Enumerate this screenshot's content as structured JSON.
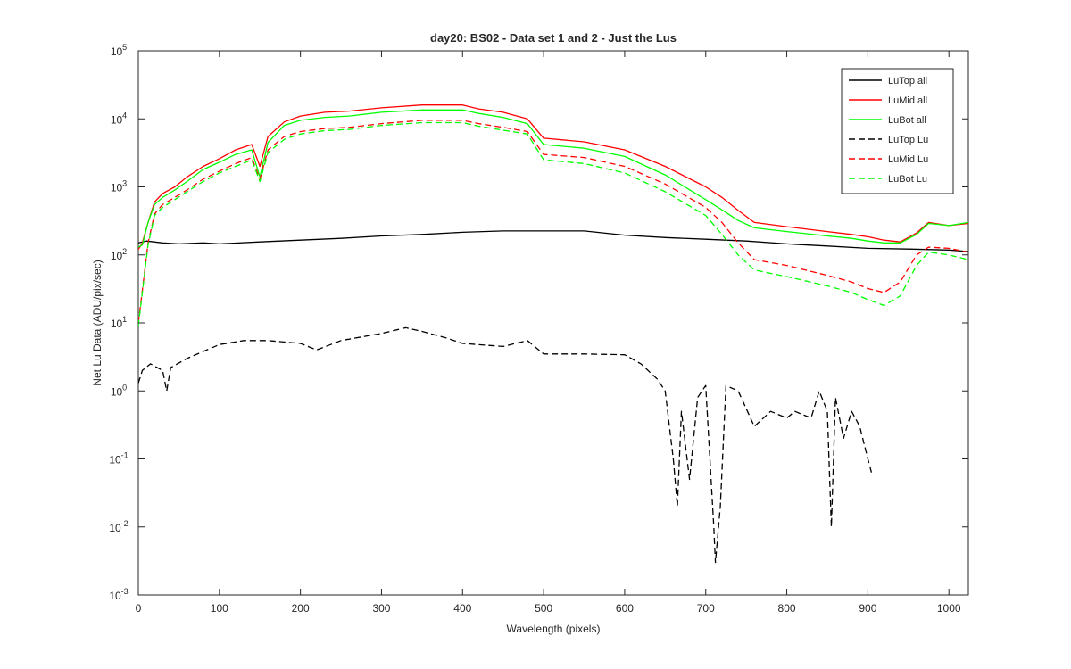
{
  "chart_data": {
    "type": "line",
    "title": "day20: BS02 - Data set 1 and 2 - Just the Lus",
    "xlabel": "Wavelength (pixels)",
    "ylabel": "Net Lu Data (ADU/pix/sec)",
    "xlim": [
      0,
      1024
    ],
    "ylim": [
      0.001,
      100000
    ],
    "yscale": "log",
    "grid": false,
    "legend_position": "top-right",
    "x_ticks": [
      "0",
      "100",
      "200",
      "300",
      "400",
      "500",
      "600",
      "700",
      "800",
      "900",
      "1000"
    ],
    "y_ticks": [
      {
        "base": "10",
        "exp": "-3"
      },
      {
        "base": "10",
        "exp": "-2"
      },
      {
        "base": "10",
        "exp": "-1"
      },
      {
        "base": "10",
        "exp": "0"
      },
      {
        "base": "10",
        "exp": "1"
      },
      {
        "base": "10",
        "exp": "2"
      },
      {
        "base": "10",
        "exp": "3"
      },
      {
        "base": "10",
        "exp": "4"
      },
      {
        "base": "10",
        "exp": "5"
      }
    ],
    "series": [
      {
        "name": "LuTop  all",
        "color": "#000000",
        "dash": "solid",
        "points": [
          [
            0,
            150
          ],
          [
            10,
            160
          ],
          [
            30,
            150
          ],
          [
            50,
            145
          ],
          [
            80,
            150
          ],
          [
            100,
            145
          ],
          [
            150,
            155
          ],
          [
            200,
            165
          ],
          [
            250,
            175
          ],
          [
            300,
            190
          ],
          [
            350,
            200
          ],
          [
            400,
            215
          ],
          [
            450,
            225
          ],
          [
            500,
            225
          ],
          [
            550,
            225
          ],
          [
            600,
            195
          ],
          [
            650,
            180
          ],
          [
            700,
            170
          ],
          [
            750,
            160
          ],
          [
            800,
            145
          ],
          [
            850,
            135
          ],
          [
            900,
            125
          ],
          [
            950,
            122
          ],
          [
            1000,
            118
          ],
          [
            1024,
            112
          ]
        ]
      },
      {
        "name": "LuMid  all",
        "color": "#ff0000",
        "dash": "solid",
        "points": [
          [
            0,
            120
          ],
          [
            5,
            150
          ],
          [
            12,
            300
          ],
          [
            20,
            600
          ],
          [
            30,
            800
          ],
          [
            45,
            1000
          ],
          [
            60,
            1400
          ],
          [
            80,
            2000
          ],
          [
            100,
            2600
          ],
          [
            120,
            3500
          ],
          [
            140,
            4200
          ],
          [
            150,
            2000
          ],
          [
            160,
            5500
          ],
          [
            180,
            9000
          ],
          [
            200,
            11000
          ],
          [
            230,
            12500
          ],
          [
            260,
            13000
          ],
          [
            300,
            14500
          ],
          [
            350,
            16000
          ],
          [
            400,
            16000
          ],
          [
            420,
            14000
          ],
          [
            450,
            12500
          ],
          [
            480,
            10000
          ],
          [
            500,
            5200
          ],
          [
            550,
            4600
          ],
          [
            600,
            3500
          ],
          [
            650,
            2000
          ],
          [
            700,
            1000
          ],
          [
            720,
            700
          ],
          [
            740,
            450
          ],
          [
            760,
            300
          ],
          [
            800,
            260
          ],
          [
            850,
            220
          ],
          [
            880,
            200
          ],
          [
            900,
            185
          ],
          [
            920,
            165
          ],
          [
            940,
            155
          ],
          [
            960,
            210
          ],
          [
            975,
            300
          ],
          [
            1000,
            270
          ],
          [
            1024,
            290
          ]
        ]
      },
      {
        "name": "LuBot  all",
        "color": "#00ff00",
        "dash": "solid",
        "points": [
          [
            0,
            130
          ],
          [
            5,
            140
          ],
          [
            12,
            300
          ],
          [
            20,
            550
          ],
          [
            30,
            700
          ],
          [
            45,
            900
          ],
          [
            60,
            1200
          ],
          [
            80,
            1800
          ],
          [
            100,
            2300
          ],
          [
            120,
            3000
          ],
          [
            140,
            3500
          ],
          [
            150,
            1400
          ],
          [
            160,
            4500
          ],
          [
            180,
            8000
          ],
          [
            200,
            9500
          ],
          [
            230,
            10500
          ],
          [
            260,
            11000
          ],
          [
            300,
            12500
          ],
          [
            350,
            13500
          ],
          [
            400,
            13500
          ],
          [
            420,
            12000
          ],
          [
            450,
            10500
          ],
          [
            480,
            8500
          ],
          [
            500,
            4200
          ],
          [
            550,
            3700
          ],
          [
            600,
            2800
          ],
          [
            650,
            1500
          ],
          [
            700,
            650
          ],
          [
            720,
            460
          ],
          [
            740,
            320
          ],
          [
            760,
            250
          ],
          [
            800,
            220
          ],
          [
            850,
            190
          ],
          [
            880,
            175
          ],
          [
            900,
            160
          ],
          [
            920,
            150
          ],
          [
            940,
            150
          ],
          [
            960,
            200
          ],
          [
            975,
            290
          ],
          [
            1000,
            270
          ],
          [
            1024,
            300
          ]
        ]
      },
      {
        "name": "LuTop  Lu",
        "color": "#000000",
        "dash": "dashed",
        "points": [
          [
            0,
            1.3
          ],
          [
            5,
            2.0
          ],
          [
            15,
            2.5
          ],
          [
            30,
            2.0
          ],
          [
            35,
            1.0
          ],
          [
            40,
            2.2
          ],
          [
            60,
            3.0
          ],
          [
            80,
            3.8
          ],
          [
            100,
            4.8
          ],
          [
            130,
            5.5
          ],
          [
            160,
            5.5
          ],
          [
            200,
            5.0
          ],
          [
            220,
            4.0
          ],
          [
            250,
            5.5
          ],
          [
            300,
            7.0
          ],
          [
            330,
            8.5
          ],
          [
            350,
            7.5
          ],
          [
            380,
            6.0
          ],
          [
            400,
            5.0
          ],
          [
            450,
            4.5
          ],
          [
            480,
            5.5
          ],
          [
            500,
            3.5
          ],
          [
            550,
            3.5
          ],
          [
            600,
            3.4
          ],
          [
            620,
            2.5
          ],
          [
            640,
            1.5
          ],
          [
            650,
            1.0
          ],
          [
            660,
            0.1
          ],
          [
            665,
            0.02
          ],
          [
            670,
            0.5
          ],
          [
            680,
            0.05
          ],
          [
            690,
            0.8
          ],
          [
            700,
            1.2
          ],
          [
            710,
            0.01
          ],
          [
            712,
            0.003
          ],
          [
            718,
            0.02
          ],
          [
            725,
            1.2
          ],
          [
            740,
            1.0
          ],
          [
            760,
            0.3
          ],
          [
            780,
            0.5
          ],
          [
            800,
            0.4
          ],
          [
            810,
            0.5
          ],
          [
            830,
            0.4
          ],
          [
            840,
            1.0
          ],
          [
            850,
            0.5
          ],
          [
            855,
            0.01
          ],
          [
            860,
            0.8
          ],
          [
            870,
            0.2
          ],
          [
            880,
            0.5
          ],
          [
            890,
            0.3
          ],
          [
            900,
            0.1
          ],
          [
            905,
            0.06
          ]
        ]
      },
      {
        "name": "LuMid  Lu",
        "color": "#ff0000",
        "dash": "dashed",
        "points": [
          [
            0,
            10
          ],
          [
            5,
            30
          ],
          [
            12,
            150
          ],
          [
            20,
            400
          ],
          [
            30,
            550
          ],
          [
            45,
            700
          ],
          [
            60,
            900
          ],
          [
            80,
            1300
          ],
          [
            100,
            1700
          ],
          [
            120,
            2200
          ],
          [
            140,
            2700
          ],
          [
            150,
            1300
          ],
          [
            160,
            3500
          ],
          [
            180,
            5500
          ],
          [
            200,
            6500
          ],
          [
            230,
            7200
          ],
          [
            260,
            7500
          ],
          [
            300,
            8500
          ],
          [
            350,
            9500
          ],
          [
            400,
            9500
          ],
          [
            420,
            8500
          ],
          [
            450,
            7500
          ],
          [
            480,
            6500
          ],
          [
            500,
            3000
          ],
          [
            550,
            2700
          ],
          [
            600,
            2000
          ],
          [
            650,
            1100
          ],
          [
            700,
            500
          ],
          [
            720,
            300
          ],
          [
            740,
            150
          ],
          [
            760,
            85
          ],
          [
            800,
            70
          ],
          [
            850,
            50
          ],
          [
            880,
            40
          ],
          [
            900,
            32
          ],
          [
            920,
            28
          ],
          [
            940,
            40
          ],
          [
            960,
            100
          ],
          [
            975,
            130
          ],
          [
            1000,
            125
          ],
          [
            1024,
            110
          ]
        ]
      },
      {
        "name": "LuBot  Lu",
        "color": "#00ff00",
        "dash": "dashed",
        "points": [
          [
            0,
            9
          ],
          [
            5,
            28
          ],
          [
            12,
            140
          ],
          [
            20,
            380
          ],
          [
            30,
            500
          ],
          [
            45,
            650
          ],
          [
            60,
            850
          ],
          [
            80,
            1200
          ],
          [
            100,
            1600
          ],
          [
            120,
            2000
          ],
          [
            140,
            2500
          ],
          [
            150,
            1200
          ],
          [
            160,
            3200
          ],
          [
            180,
            5000
          ],
          [
            200,
            6000
          ],
          [
            230,
            6700
          ],
          [
            260,
            7000
          ],
          [
            300,
            8000
          ],
          [
            350,
            8800
          ],
          [
            400,
            8800
          ],
          [
            420,
            7800
          ],
          [
            450,
            6800
          ],
          [
            480,
            6000
          ],
          [
            500,
            2500
          ],
          [
            550,
            2200
          ],
          [
            600,
            1600
          ],
          [
            650,
            850
          ],
          [
            700,
            380
          ],
          [
            720,
            200
          ],
          [
            740,
            100
          ],
          [
            760,
            60
          ],
          [
            800,
            48
          ],
          [
            850,
            35
          ],
          [
            880,
            28
          ],
          [
            900,
            22
          ],
          [
            920,
            18
          ],
          [
            940,
            25
          ],
          [
            960,
            70
          ],
          [
            975,
            110
          ],
          [
            1000,
            100
          ],
          [
            1024,
            85
          ]
        ]
      }
    ]
  }
}
